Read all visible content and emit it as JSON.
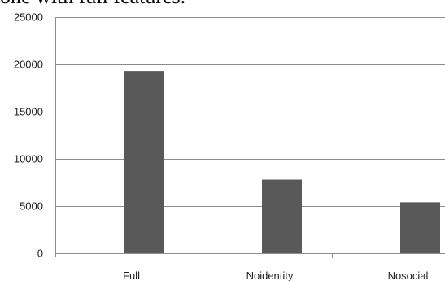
{
  "caption": "one with full features.",
  "chart_data": {
    "type": "bar",
    "categories": [
      "Full",
      "Noidentity",
      "Nosocial"
    ],
    "values": [
      19300,
      7800,
      5400
    ],
    "ylim": [
      0,
      25000
    ],
    "yticks": [
      0,
      5000,
      10000,
      15000,
      20000,
      25000
    ],
    "grid": true,
    "colors": {
      "bar": "#595959",
      "grid": "#8c8c8c",
      "axis": "#8c8c8c"
    }
  }
}
